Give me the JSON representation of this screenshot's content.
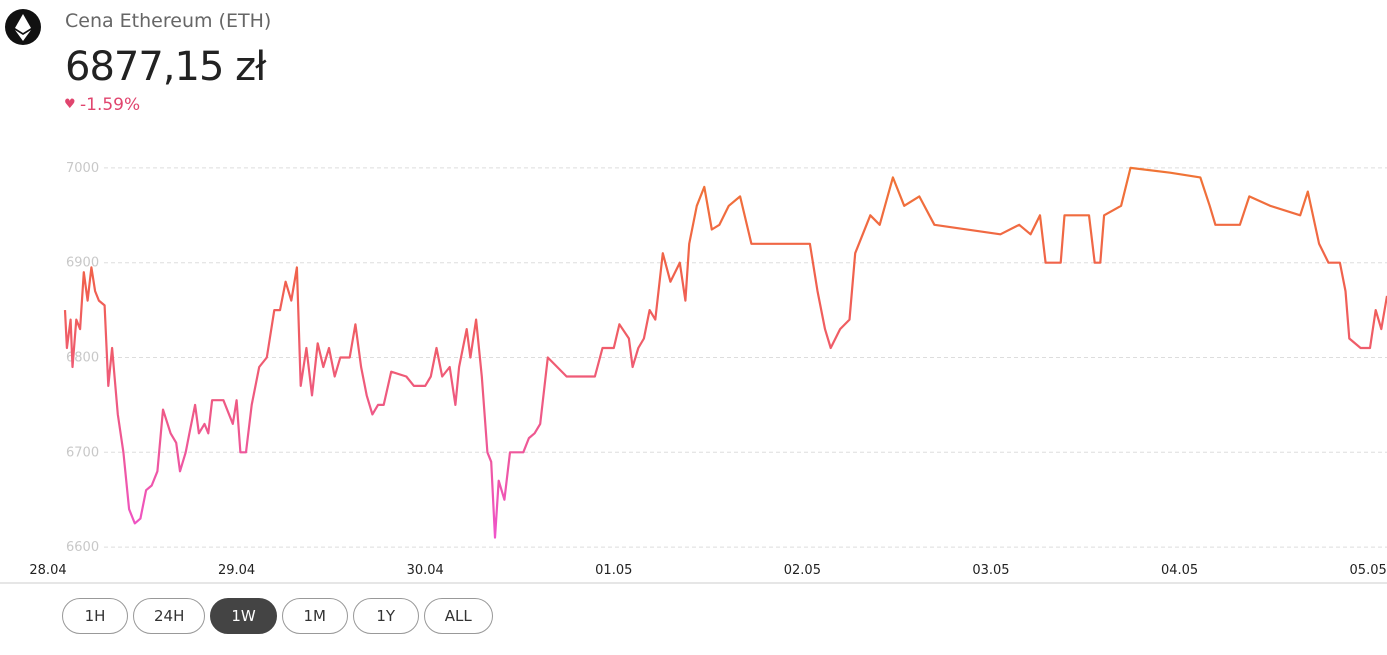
{
  "header": {
    "title": "Cena Ethereum (ETH)",
    "price": "6877,15 zł",
    "change": "-1.59%"
  },
  "chart_data": {
    "type": "line",
    "x": [
      0.09,
      0.1,
      0.12,
      0.13,
      0.15,
      0.17,
      0.19,
      0.21,
      0.23,
      0.25,
      0.27,
      0.3,
      0.32,
      0.34,
      0.37,
      0.4,
      0.43,
      0.46,
      0.49,
      0.52,
      0.55,
      0.58,
      0.61,
      0.65,
      0.68,
      0.7,
      0.73,
      0.75,
      0.78,
      0.8,
      0.83,
      0.85,
      0.87,
      0.93,
      0.98,
      1.0,
      1.02,
      1.05,
      1.08,
      1.12,
      1.16,
      1.2,
      1.23,
      1.26,
      1.29,
      1.32,
      1.34,
      1.37,
      1.4,
      1.43,
      1.46,
      1.49,
      1.52,
      1.55,
      1.6,
      1.63,
      1.66,
      1.69,
      1.72,
      1.75,
      1.78,
      1.82,
      1.9,
      1.94,
      2.0,
      2.03,
      2.06,
      2.09,
      2.13,
      2.16,
      2.18,
      2.2,
      2.22,
      2.24,
      2.27,
      2.3,
      2.33,
      2.35,
      2.37,
      2.39,
      2.42,
      2.45,
      2.48,
      2.52,
      2.55,
      2.58,
      2.61,
      2.65,
      2.7,
      2.75,
      2.8,
      2.9,
      2.94,
      3.0,
      3.03,
      3.08,
      3.1,
      3.13,
      3.16,
      3.19,
      3.22,
      3.26,
      3.3,
      3.35,
      3.38,
      3.4,
      3.44,
      3.48,
      3.52,
      3.56,
      3.61,
      3.67,
      3.73,
      4.04,
      4.08,
      4.12,
      4.15,
      4.2,
      4.25,
      4.28,
      4.36,
      4.41,
      4.48,
      4.54,
      4.62,
      4.7,
      5.05,
      5.15,
      5.21,
      5.26,
      5.29,
      5.37,
      5.39,
      5.52,
      5.55,
      5.58,
      5.6,
      5.69,
      5.74,
      5.95,
      6.11,
      6.16,
      6.19,
      6.32,
      6.37,
      6.48,
      6.64,
      6.68,
      6.74,
      6.79,
      6.85,
      6.88,
      6.9,
      6.96,
      7.01,
      7.04,
      7.07,
      7.1
    ],
    "values": [
      6850,
      6810,
      6840,
      6790,
      6840,
      6830,
      6890,
      6860,
      6895,
      6870,
      6860,
      6855,
      6770,
      6810,
      6740,
      6700,
      6640,
      6625,
      6630,
      6660,
      6665,
      6680,
      6745,
      6720,
      6710,
      6680,
      6700,
      6720,
      6750,
      6720,
      6730,
      6720,
      6755,
      6755,
      6730,
      6755,
      6700,
      6700,
      6750,
      6790,
      6800,
      6850,
      6850,
      6880,
      6860,
      6895,
      6770,
      6810,
      6760,
      6815,
      6790,
      6810,
      6780,
      6800,
      6800,
      6835,
      6790,
      6760,
      6740,
      6750,
      6750,
      6785,
      6780,
      6770,
      6770,
      6780,
      6810,
      6780,
      6790,
      6750,
      6790,
      6810,
      6830,
      6800,
      6840,
      6780,
      6700,
      6690,
      6610,
      6670,
      6650,
      6700,
      6700,
      6700,
      6715,
      6720,
      6730,
      6800,
      6790,
      6780,
      6780,
      6780,
      6810,
      6810,
      6835,
      6820,
      6790,
      6810,
      6820,
      6850,
      6840,
      6910,
      6880,
      6900,
      6860,
      6920,
      6960,
      6980,
      6935,
      6940,
      6960,
      6970,
      6920,
      6920,
      6870,
      6830,
      6810,
      6830,
      6840,
      6910,
      6950,
      6940,
      6990,
      6960,
      6970,
      6940,
      6930,
      6940,
      6930,
      6950,
      6900,
      6900,
      6950,
      6950,
      6900,
      6900,
      6950,
      6960,
      7000,
      6995,
      6990,
      6960,
      6940,
      6940,
      6970,
      6960,
      6950,
      6975,
      6920,
      6900,
      6900,
      6870,
      6820,
      6810,
      6810,
      6850,
      6830,
      6865
    ],
    "xlim": [
      0,
      7.1
    ],
    "xticks": [
      {
        "value": 0,
        "label": "28.04"
      },
      {
        "value": 1,
        "label": "29.04"
      },
      {
        "value": 2,
        "label": "30.04"
      },
      {
        "value": 3,
        "label": "01.05"
      },
      {
        "value": 4,
        "label": "02.05"
      },
      {
        "value": 5,
        "label": "03.05"
      },
      {
        "value": 6,
        "label": "04.05"
      },
      {
        "value": 7,
        "label": "05.05"
      }
    ],
    "ylim": [
      6560,
      7040
    ],
    "yticks": [
      6600,
      6700,
      6800,
      6900,
      7000
    ],
    "grid": true,
    "gradient_colors": [
      "#f07b2c",
      "#f0604e",
      "#ee5890",
      "#f052e6"
    ]
  },
  "range_buttons": [
    "1H",
    "24H",
    "1W",
    "1M",
    "1Y",
    "ALL"
  ],
  "selected_range": "1W"
}
